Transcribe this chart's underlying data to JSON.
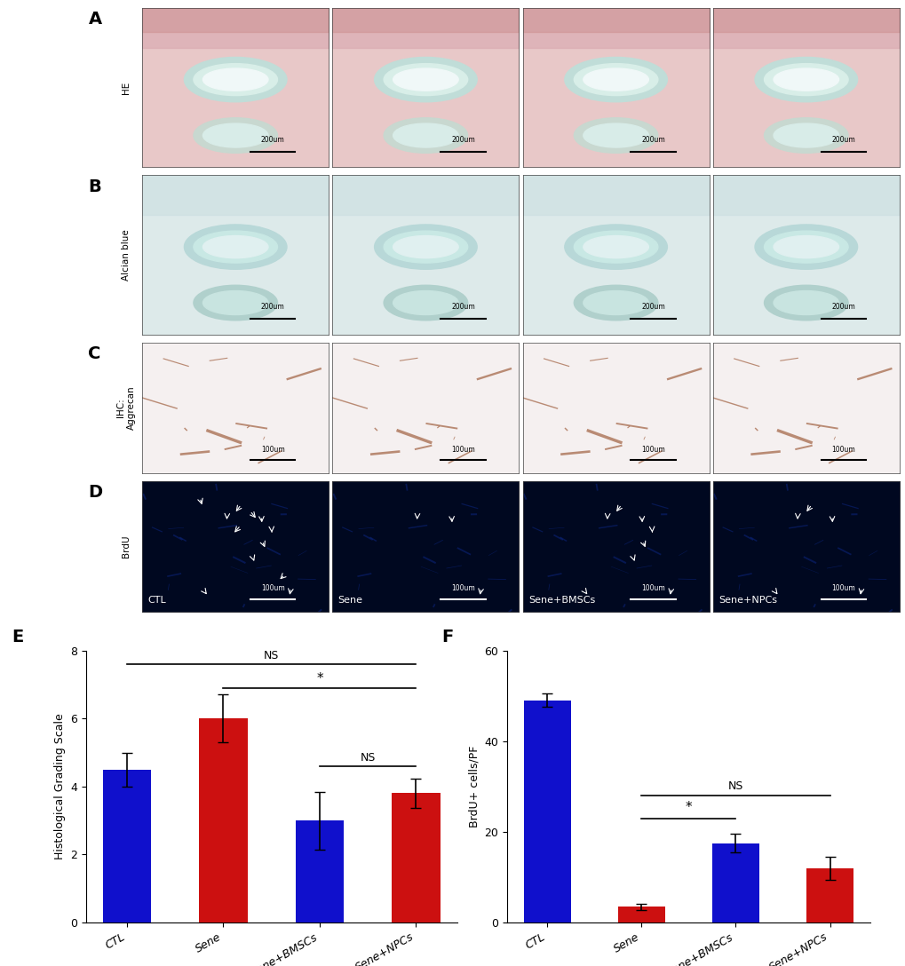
{
  "panel_labels_img": [
    "A",
    "B",
    "C",
    "D"
  ],
  "row_labels": [
    "HE",
    "Alcian blue",
    "IHC:\nAggrecan",
    "BrdU"
  ],
  "col_labels": [
    "CTL",
    "Sene",
    "Sene+BMSCs",
    "Sene+NPCs"
  ],
  "panel_A_bg": "#e8c0c0",
  "panel_A_detail1": "#d4a0b0",
  "panel_A_detail2": "#c0d8d8",
  "panel_B_bg": "#d8eaea",
  "panel_B_detail1": "#b0ccd0",
  "panel_B_detail2": "#c8e0d8",
  "panel_C_bg": "#f4eeee",
  "panel_C_detail1": "#c8a080",
  "panel_D_bg": "#000820",
  "bar_colors_E": [
    "#1010cc",
    "#cc1010",
    "#1010cc",
    "#cc1010"
  ],
  "bar_values_E": [
    4.5,
    6.0,
    3.0,
    3.8
  ],
  "bar_errors_E": [
    0.5,
    0.7,
    0.85,
    0.42
  ],
  "bar_ylim_E": [
    0,
    8
  ],
  "bar_yticks_E": [
    0,
    2,
    4,
    6,
    8
  ],
  "bar_ylabel_E": "Histological Grading Scale",
  "bar_colors_F": [
    "#1010cc",
    "#cc1010",
    "#1010cc",
    "#cc1010"
  ],
  "bar_values_F": [
    49.0,
    3.5,
    17.5,
    12.0
  ],
  "bar_errors_F": [
    1.5,
    0.7,
    2.0,
    2.5
  ],
  "bar_ylim_F": [
    0,
    60
  ],
  "bar_yticks_F": [
    0,
    20,
    40,
    60
  ],
  "bar_ylabel_F": "BrdU+ cells/PF",
  "categories": [
    "CTL",
    "Sene",
    "Sene+BMSCs",
    "Sene+NPCs"
  ],
  "label_E": "E",
  "label_F": "F",
  "background_color": "#ffffff"
}
